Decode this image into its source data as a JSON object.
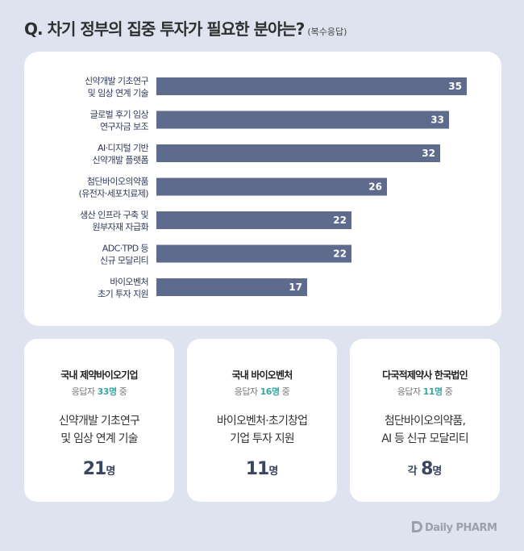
{
  "header": {
    "question": "Q. 차기 정부의 집중 투자가 필요한 분야는?",
    "note": "(복수응답)"
  },
  "chart_data": {
    "type": "bar",
    "orientation": "horizontal",
    "categories": [
      [
        "신약개발 기초연구",
        "및 임상 연계 기술"
      ],
      [
        "글로벌 후기 임상",
        "연구자금 보조"
      ],
      [
        "AI·디지털 기반",
        "신약개발 플랫폼"
      ],
      [
        "첨단바이오의약품",
        "(유전자·세포치료제)"
      ],
      [
        "생산 인프라 구축 및",
        "원부자재 자급화"
      ],
      [
        "ADC·TPD 등",
        "신규 모달리티"
      ],
      [
        "바이오벤처",
        "초기 투자 지원"
      ]
    ],
    "values": [
      35,
      33,
      32,
      26,
      22,
      22,
      17
    ],
    "xlim": [
      0,
      40
    ],
    "bar_color": "#5e6b8c",
    "value_labels": [
      "35",
      "33",
      "32",
      "26",
      "22",
      "22",
      "17"
    ]
  },
  "groups": [
    {
      "name": "국내 제약바이오기업",
      "resp_prefix": "응답자 ",
      "resp_count": "33명",
      "resp_suffix": " 중",
      "topic_line1": "신약개발 기초연구",
      "topic_line2": "및 임상 연계 기술",
      "result_prefix": "",
      "result_num": "21",
      "result_unit": "명"
    },
    {
      "name": "국내 바이오벤처",
      "resp_prefix": "응답자 ",
      "resp_count": "16명",
      "resp_suffix": " 중",
      "topic_line1": "바이오벤처·초기창업",
      "topic_line2": "기업 투자 지원",
      "result_prefix": "",
      "result_num": "11",
      "result_unit": "명"
    },
    {
      "name": "다국적제약사 한국법인",
      "resp_prefix": "응답자 ",
      "resp_count": "11명",
      "resp_suffix": " 중",
      "topic_line1": "첨단바이오의약품,",
      "topic_line2": "AI 등 신규 모달리티",
      "result_prefix": "각 ",
      "result_num": "8",
      "result_unit": "명"
    }
  ],
  "brand": {
    "logo_text": "Daily PHARM",
    "accent_color": "#3aa6a0"
  }
}
